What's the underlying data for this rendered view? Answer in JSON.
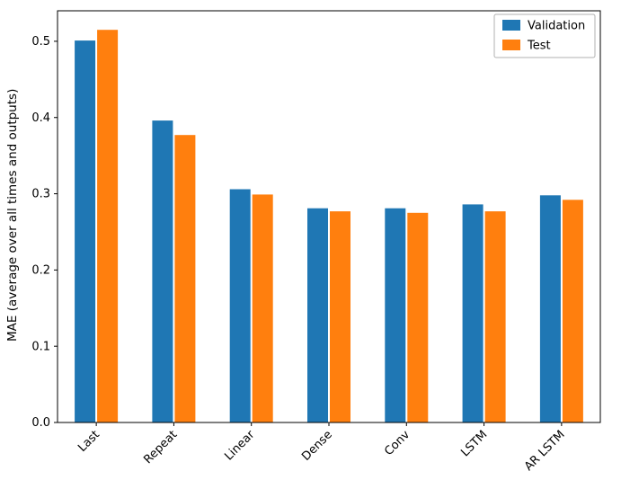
{
  "chart_data": {
    "type": "bar",
    "categories": [
      "Last",
      "Repeat",
      "Linear",
      "Dense",
      "Conv",
      "LSTM",
      "AR LSTM"
    ],
    "series": [
      {
        "name": "Validation",
        "color": "#1f77b4",
        "values": [
          0.501,
          0.396,
          0.306,
          0.281,
          0.281,
          0.286,
          0.298
        ]
      },
      {
        "name": "Test",
        "color": "#ff7f0e",
        "values": [
          0.515,
          0.377,
          0.299,
          0.277,
          0.275,
          0.277,
          0.292
        ]
      }
    ],
    "title": "",
    "xlabel": "",
    "ylabel": "MAE (average over all times and outputs)",
    "ylim": [
      0,
      0.54
    ],
    "yticks": [
      0.0,
      0.1,
      0.2,
      0.3,
      0.4,
      0.5
    ],
    "ytick_labels": [
      "0.0",
      "0.1",
      "0.2",
      "0.3",
      "0.4",
      "0.5"
    ],
    "xtick_rotation": 45,
    "grid": false,
    "legend_position": "upper right",
    "axis_color": "#000000",
    "legend_border_color": "#b0b0b0"
  }
}
